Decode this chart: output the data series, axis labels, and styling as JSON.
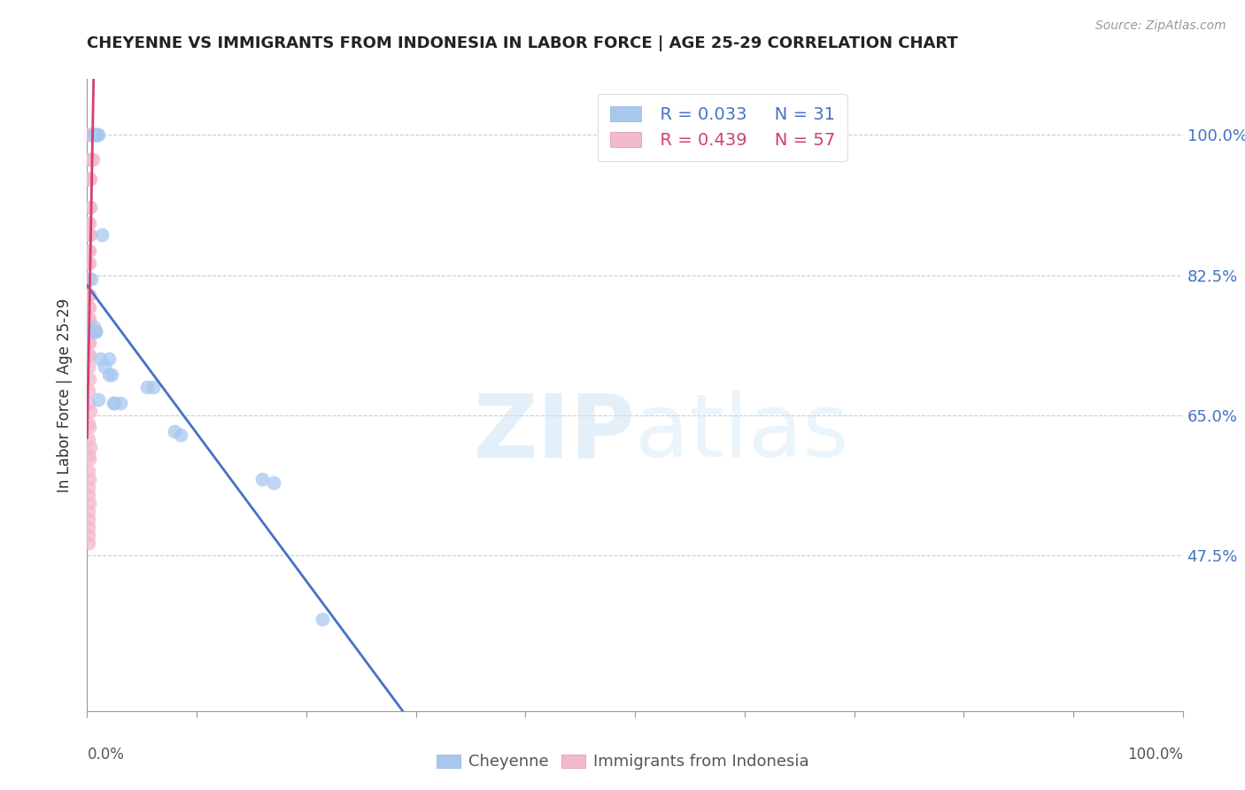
{
  "title": "CHEYENNE VS IMMIGRANTS FROM INDONESIA IN LABOR FORCE | AGE 25-29 CORRELATION CHART",
  "source": "Source: ZipAtlas.com",
  "ylabel": "In Labor Force | Age 25-29",
  "ytick_values": [
    0.475,
    0.65,
    0.825,
    1.0
  ],
  "ytick_labels": [
    "47.5%",
    "65.0%",
    "82.5%",
    "100.0%"
  ],
  "legend_blue_r": "R = 0.033",
  "legend_blue_n": "N = 31",
  "legend_pink_r": "R = 0.439",
  "legend_pink_n": "N = 57",
  "blue_scatter_color": "#a8c8f0",
  "pink_scatter_color": "#f4b8cc",
  "blue_line_color": "#4472c4",
  "pink_line_color": "#d04070",
  "xmin": 0.0,
  "xmax": 1.0,
  "ymin": 0.28,
  "ymax": 1.07,
  "cheyenne_x": [
    0.006,
    0.007,
    0.008,
    0.009,
    0.01,
    0.013,
    0.004,
    0.006,
    0.007,
    0.008,
    0.02,
    0.006,
    0.012,
    0.006,
    0.016,
    0.006,
    0.008,
    0.006,
    0.02,
    0.022,
    0.01,
    0.024,
    0.03,
    0.025,
    0.055,
    0.06,
    0.08,
    0.085,
    0.16,
    0.17,
    0.215
  ],
  "cheyenne_y": [
    1.0,
    1.0,
    1.0,
    1.0,
    1.0,
    0.875,
    0.82,
    0.76,
    0.755,
    0.755,
    0.72,
    0.755,
    0.72,
    0.755,
    0.71,
    0.755,
    0.755,
    0.755,
    0.7,
    0.7,
    0.67,
    0.665,
    0.665,
    0.665,
    0.685,
    0.685,
    0.63,
    0.625,
    0.57,
    0.565,
    0.395
  ],
  "indonesia_x": [
    0.002,
    0.003,
    0.004,
    0.005,
    0.006,
    0.002,
    0.003,
    0.004,
    0.005,
    0.001,
    0.002,
    0.003,
    0.002,
    0.003,
    0.001,
    0.002,
    0.001,
    0.002,
    0.003,
    0.001,
    0.002,
    0.001,
    0.002,
    0.001,
    0.001,
    0.002,
    0.001,
    0.002,
    0.001,
    0.002,
    0.001,
    0.002,
    0.001,
    0.002,
    0.001,
    0.002,
    0.001,
    0.002,
    0.001,
    0.001,
    0.003,
    0.001,
    0.002,
    0.001,
    0.003,
    0.001,
    0.002,
    0.001,
    0.002,
    0.001,
    0.001,
    0.002,
    0.001,
    0.001,
    0.001,
    0.001,
    0.001
  ],
  "indonesia_y": [
    1.0,
    1.0,
    1.0,
    1.0,
    1.0,
    0.97,
    0.97,
    0.97,
    0.97,
    0.945,
    0.945,
    0.945,
    0.91,
    0.91,
    0.89,
    0.89,
    0.875,
    0.875,
    0.875,
    0.855,
    0.855,
    0.84,
    0.84,
    0.82,
    0.8,
    0.8,
    0.785,
    0.785,
    0.77,
    0.77,
    0.755,
    0.755,
    0.74,
    0.74,
    0.725,
    0.725,
    0.71,
    0.695,
    0.68,
    0.665,
    0.655,
    0.64,
    0.635,
    0.62,
    0.61,
    0.6,
    0.595,
    0.58,
    0.57,
    0.56,
    0.55,
    0.54,
    0.53,
    0.52,
    0.51,
    0.5,
    0.49
  ]
}
